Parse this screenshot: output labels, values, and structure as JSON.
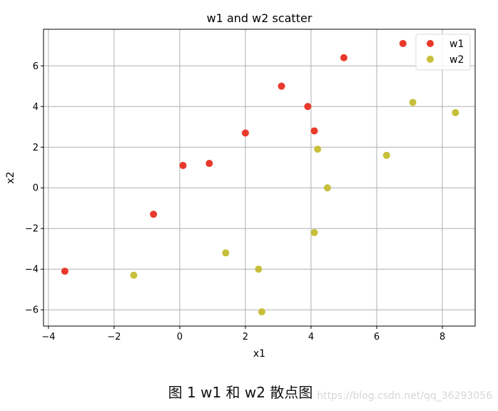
{
  "chart_data": {
    "type": "scatter",
    "title": "w1 and w2 scatter",
    "xlabel": "x1",
    "ylabel": "x2",
    "xlim": [
      -4.15,
      9.0
    ],
    "ylim": [
      -6.8,
      7.8
    ],
    "xticks": [
      -4,
      -2,
      0,
      2,
      4,
      6,
      8
    ],
    "yticks": [
      -6,
      -4,
      -2,
      0,
      2,
      4,
      6
    ],
    "grid": true,
    "legend": "top-right",
    "series": [
      {
        "name": "w1",
        "color": "#e8392b",
        "points": [
          [
            0.1,
            1.1
          ],
          [
            6.8,
            7.1
          ],
          [
            -3.5,
            -4.1
          ],
          [
            2.0,
            2.7
          ],
          [
            4.1,
            2.8
          ],
          [
            3.1,
            5.0
          ],
          [
            -0.8,
            -1.3
          ],
          [
            0.9,
            1.2
          ],
          [
            5.0,
            6.4
          ],
          [
            3.9,
            4.0
          ]
        ]
      },
      {
        "name": "w2",
        "color": "#c8bf3a",
        "points": [
          [
            7.1,
            4.2
          ],
          [
            -1.4,
            -4.3
          ],
          [
            4.5,
            0.0
          ],
          [
            6.3,
            1.6
          ],
          [
            4.2,
            1.9
          ],
          [
            1.4,
            -3.2
          ],
          [
            2.4,
            -4.0
          ],
          [
            2.5,
            -6.1
          ],
          [
            8.4,
            3.7
          ],
          [
            4.1,
            -2.2
          ]
        ]
      }
    ]
  },
  "caption": "图 1 w1 和 w2 散点图",
  "watermark": "https://blog.csdn.net/qq_36293056"
}
